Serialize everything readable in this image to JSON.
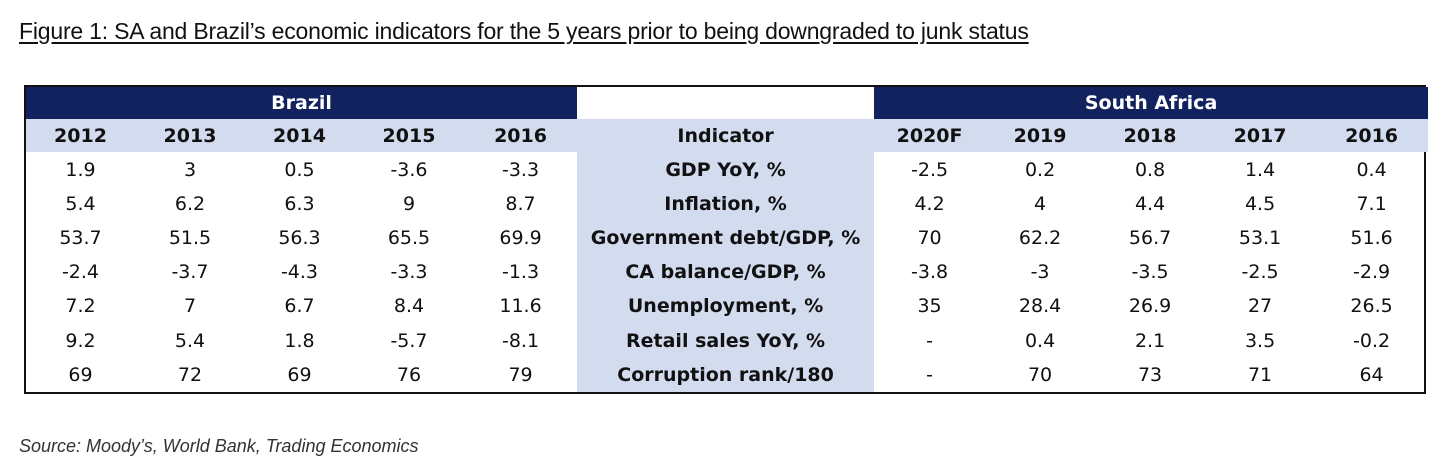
{
  "title": "Figure 1: SA and Brazil’s economic indicators for the 5 years prior to being downgraded to junk status",
  "source": "Source: Moody’s, World Bank, Trading Economics",
  "colors": {
    "header_navy": "#12225e",
    "header_light": "#d3dcef"
  },
  "chart_data": {
    "type": "table",
    "groups": {
      "left": "Brazil",
      "right": "South Africa"
    },
    "indicator_header": "Indicator",
    "brazil_years": [
      "2012",
      "2013",
      "2014",
      "2015",
      "2016"
    ],
    "sa_years": [
      "2020F",
      "2019",
      "2018",
      "2017",
      "2016"
    ],
    "rows": [
      {
        "indicator": "GDP YoY, %",
        "brazil": [
          "1.9",
          "3",
          "0.5",
          "-3.6",
          "-3.3"
        ],
        "sa": [
          "-2.5",
          "0.2",
          "0.8",
          "1.4",
          "0.4"
        ]
      },
      {
        "indicator": "Inflation, %",
        "brazil": [
          "5.4",
          "6.2",
          "6.3",
          "9",
          "8.7"
        ],
        "sa": [
          "4.2",
          "4",
          "4.4",
          "4.5",
          "7.1"
        ]
      },
      {
        "indicator": "Government debt/GDP, %",
        "brazil": [
          "53.7",
          "51.5",
          "56.3",
          "65.5",
          "69.9"
        ],
        "sa": [
          "70",
          "62.2",
          "56.7",
          "53.1",
          "51.6"
        ]
      },
      {
        "indicator": "CA balance/GDP, %",
        "brazil": [
          "-2.4",
          "-3.7",
          "-4.3",
          "-3.3",
          "-1.3"
        ],
        "sa": [
          "-3.8",
          "-3",
          "-3.5",
          "-2.5",
          "-2.9"
        ]
      },
      {
        "indicator": "Unemployment, %",
        "brazil": [
          "7.2",
          "7",
          "6.7",
          "8.4",
          "11.6"
        ],
        "sa": [
          "35",
          "28.4",
          "26.9",
          "27",
          "26.5"
        ]
      },
      {
        "indicator": "Retail sales YoY, %",
        "brazil": [
          "9.2",
          "5.4",
          "1.8",
          "-5.7",
          "-8.1"
        ],
        "sa": [
          "-",
          "0.4",
          "2.1",
          "3.5",
          "-0.2"
        ]
      },
      {
        "indicator": "Corruption rank/180",
        "brazil": [
          "69",
          "72",
          "69",
          "76",
          "79"
        ],
        "sa": [
          "-",
          "70",
          "73",
          "71",
          "64"
        ]
      }
    ]
  }
}
